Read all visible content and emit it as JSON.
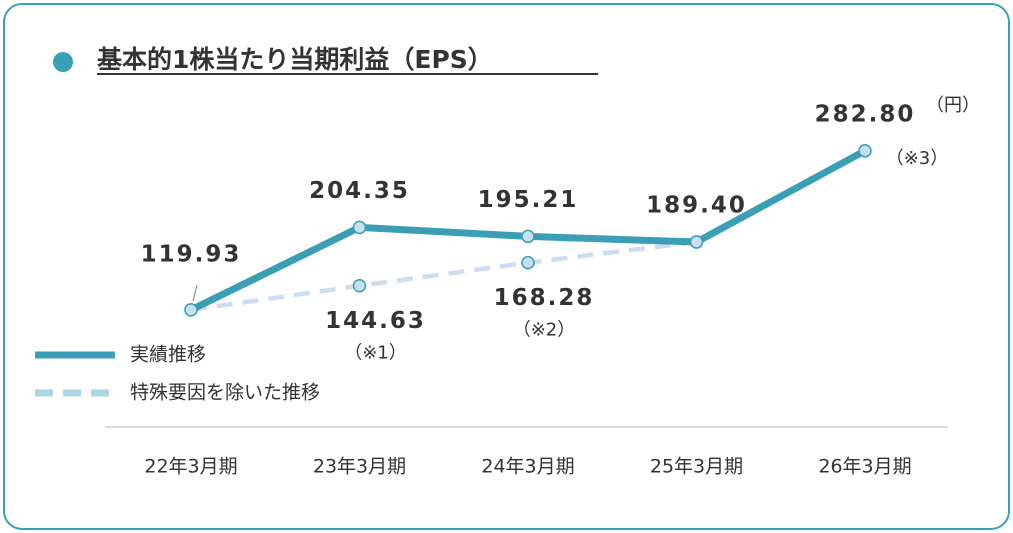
{
  "chart_data": {
    "type": "line",
    "title": "基本的1株当たり当期利益（EPS）",
    "unit": "（円）",
    "categories": [
      "22年3月期",
      "23年3月期",
      "24年3月期",
      "25年3月期",
      "26年3月期"
    ],
    "series": [
      {
        "name": "実績推移",
        "color": "#3a9fb5",
        "style": "solid",
        "values": [
          119.93,
          204.35,
          195.21,
          189.4,
          282.8
        ],
        "value_labels": [
          "119.93",
          "204.35",
          "195.21",
          "189.40",
          "282.80"
        ]
      },
      {
        "name": "特殊要因を除いた推移",
        "color": "#cddcf0",
        "style": "dashed",
        "values": [
          119.93,
          144.63,
          168.28,
          189.4,
          null
        ],
        "value_labels": [
          null,
          "144.63",
          "168.28",
          null,
          null
        ]
      }
    ],
    "annotations": [
      {
        "series": "特殊要因を除いた推移",
        "category": "23年3月期",
        "text": "（※1）"
      },
      {
        "series": "特殊要因を除いた推移",
        "category": "24年3月期",
        "text": "（※2）"
      },
      {
        "series": "実績推移",
        "category": "26年3月期",
        "text": "（※3）"
      }
    ],
    "ylim": [
      0,
      300
    ]
  }
}
